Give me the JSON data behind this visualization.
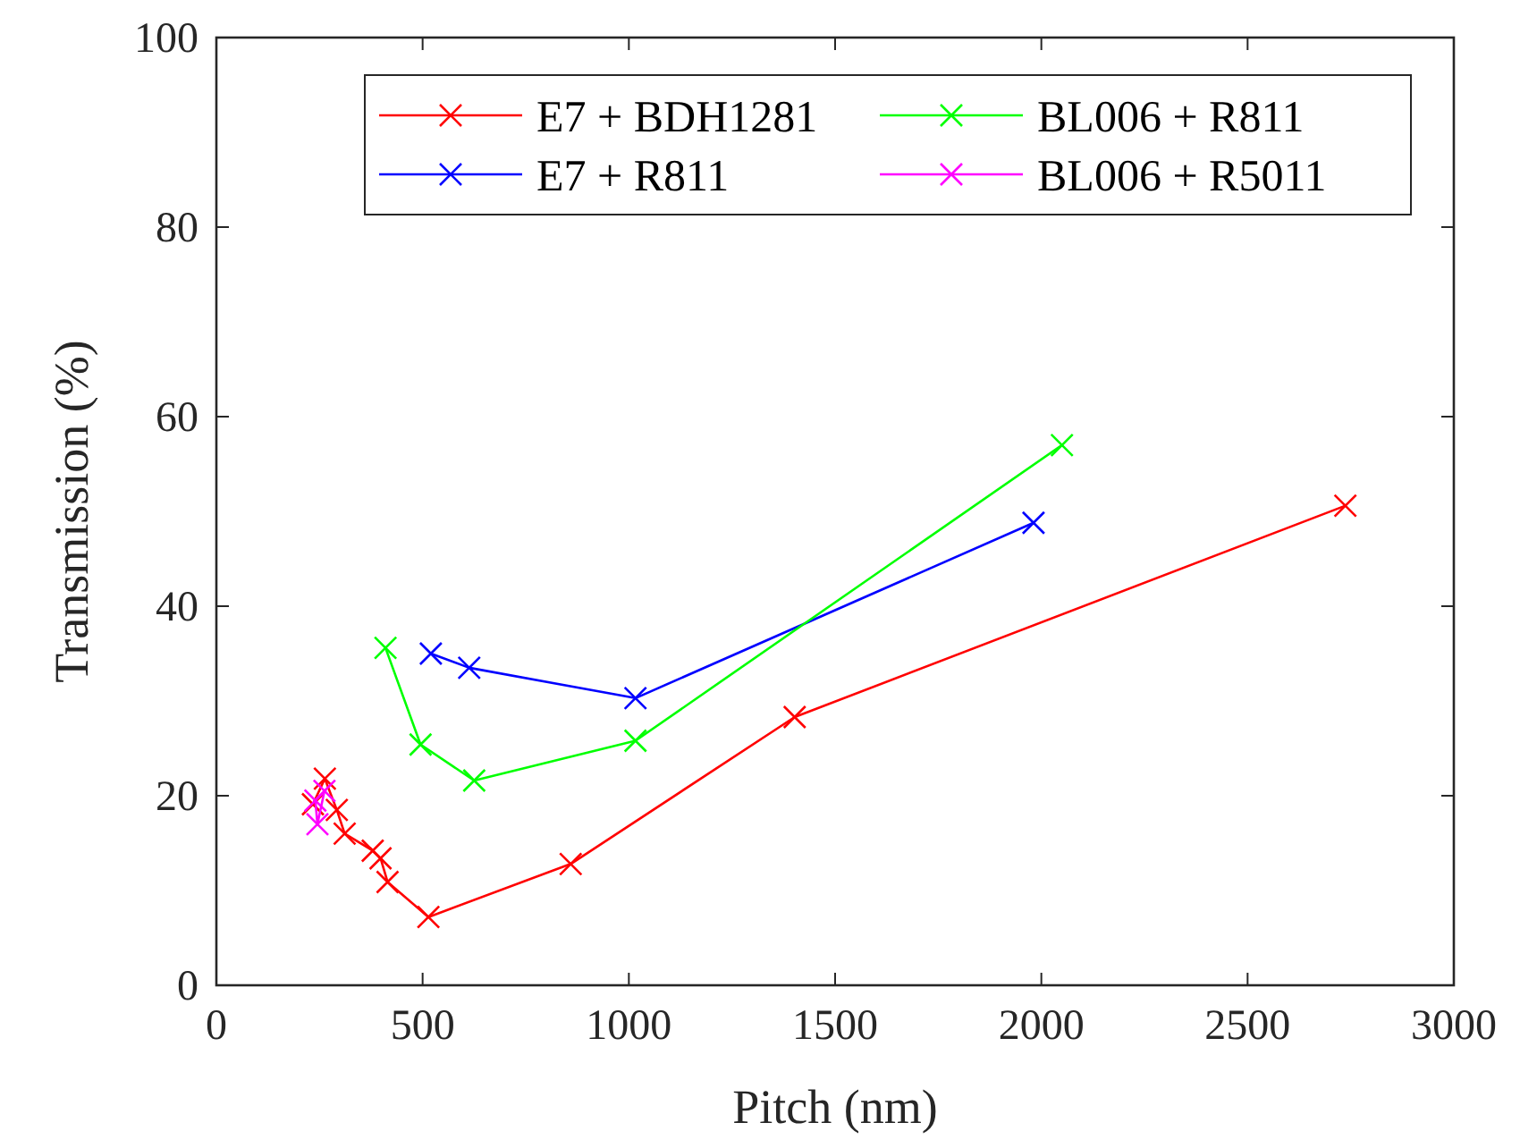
{
  "chart_data": {
    "type": "line",
    "xlabel": "Pitch (nm)",
    "ylabel": "Transmission (%)",
    "xlim": [
      0,
      3000
    ],
    "ylim": [
      0,
      100
    ],
    "xticks": [
      0,
      500,
      1000,
      1500,
      2000,
      2500,
      3000
    ],
    "yticks": [
      0,
      20,
      40,
      60,
      80,
      100
    ],
    "grid": false,
    "legend": "top right",
    "marker": "cross",
    "line_style": "solid",
    "series": [
      {
        "name": "E7 + BDH1281",
        "color": "#ff0000",
        "x": [
          234,
          263,
          292,
          311,
          379,
          398,
          415,
          514,
          859,
          1402,
          2737
        ],
        "values": [
          19.1,
          21.8,
          18.5,
          16.0,
          14.2,
          13.4,
          10.9,
          7.2,
          12.8,
          28.3,
          50.6
        ]
      },
      {
        "name": "E7 + R811",
        "color": "#0000ff",
        "x": [
          520,
          613,
          1016,
          1981
        ],
        "values": [
          35.0,
          33.5,
          30.3,
          48.8
        ]
      },
      {
        "name": "BL006 + R811",
        "color": "#00ff00",
        "x": [
          410,
          495,
          625,
          1016,
          2050
        ],
        "values": [
          35.6,
          25.4,
          21.6,
          25.8,
          57.0
        ]
      },
      {
        "name": "BL006 + R5011",
        "color": "#ff00ff",
        "x": [
          240,
          245,
          262
        ],
        "values": [
          19.5,
          17.0,
          20.5
        ]
      }
    ]
  }
}
